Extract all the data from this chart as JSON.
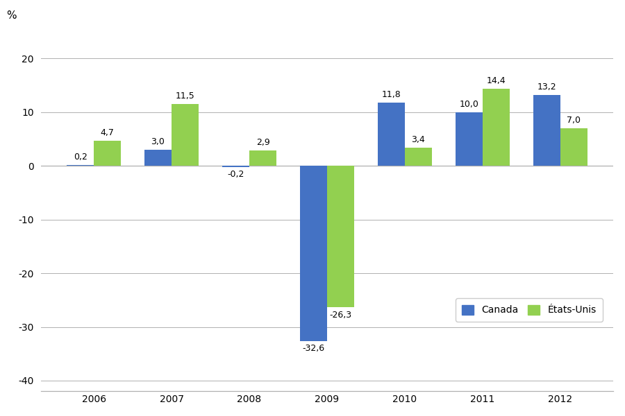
{
  "years": [
    "2006",
    "2007",
    "2008",
    "2009",
    "2010",
    "2011",
    "2012"
  ],
  "canada": [
    0.2,
    3.0,
    -0.2,
    -32.6,
    11.8,
    10.0,
    13.2
  ],
  "etats_unis": [
    4.7,
    11.5,
    2.9,
    -26.3,
    3.4,
    14.4,
    7.0
  ],
  "canada_color": "#4472C4",
  "etats_unis_color": "#92D050",
  "bar_width": 0.35,
  "ylim": [
    -42,
    25
  ],
  "yticks": [
    -40,
    -30,
    -20,
    -10,
    0,
    10,
    20
  ],
  "ylabel": "%",
  "legend_canada": "Canada",
  "legend_etats_unis": "États-Unis",
  "background_color": "#ffffff",
  "grid_color": "#b0b0b0",
  "label_fontsize": 9,
  "tick_fontsize": 10
}
